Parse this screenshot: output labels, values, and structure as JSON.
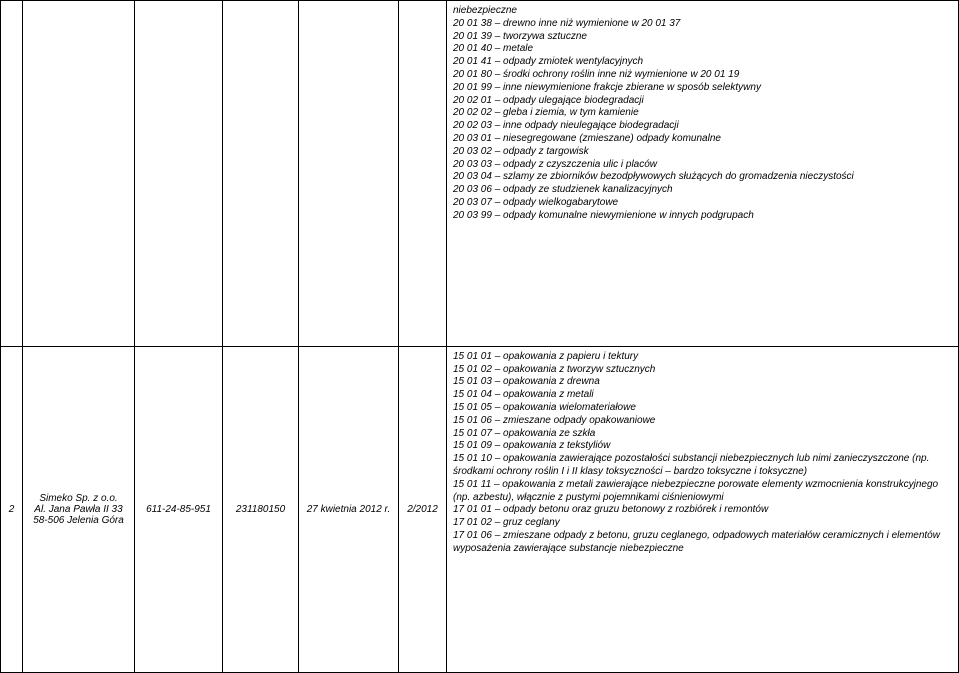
{
  "row1": {
    "lines": [
      "niebezpieczne",
      "20 01 38 – drewno inne niż wymienione w 20 01 37",
      "20 01 39 – tworzywa sztuczne",
      "20 01 40 – metale",
      "20 01 41 – odpady zmiotek wentylacyjnych",
      "20 01 80 – środki ochrony roślin inne niż wymienione w 20 01 19",
      "20 01 99 – inne niewymienione frakcje zbierane w sposób selektywny",
      "20 02 01 – odpady ulegające biodegradacji",
      "20 02 02 – gleba i ziemia, w tym kamienie",
      "20 02 03 – inne odpady nieulegające biodegradacji",
      "20 03 01 – niesegregowane (zmieszane) odpady komunalne",
      "20 03 02 – odpady z targowisk",
      "20 03 03 – odpady z czyszczenia ulic i placów",
      "20 03 04 – szlamy ze zbiorników bezodpływowych służących do gromadzenia nieczystości",
      "20 03 06 – odpady ze studzienek kanalizacyjnych",
      "20 03 07 – odpady wielkogabarytowe",
      "20 03 99 – odpady komunalne niewymienione w innych podgrupach"
    ]
  },
  "row2": {
    "num": "2",
    "company_name": "Simeko Sp. z o.o.",
    "company_addr1": "Al. Jana Pawła II 33",
    "company_addr2": "58-506 Jelenia Góra",
    "nip": "611-24-85-951",
    "regon": "231180150",
    "date": "27 kwietnia 2012 r.",
    "decno": "2/2012",
    "lines": [
      "15 01 01 – opakowania z papieru i tektury",
      "15 01 02 – opakowania z tworzyw sztucznych",
      "15 01 03 – opakowania z drewna",
      "15 01 04 – opakowania z metali",
      "15 01 05 – opakowania wielomateriałowe",
      "15 01 06 – zmieszane odpady opakowaniowe",
      "15 01 07 – opakowania ze szkła",
      "15 01 09 – opakowania z tekstyliów",
      "15 01 10 – opakowania zawierające pozostałości substancji niebezpiecznych lub nimi zanieczyszczone (np. środkami ochrony roślin I i II klasy toksyczności – bardzo toksyczne i toksyczne)",
      "15 01 11 – opakowania z metali zawierające niebezpieczne porowate elementy wzmocnienia konstrukcyjnego (np. azbestu), włącznie z pustymi pojemnikami ciśnieniowymi",
      "17 01 01 – odpady betonu oraz gruzu betonowy z rozbiórek i remontów",
      "17 01 02 – gruz ceglany",
      "17 01 06 – zmieszane odpady z betonu, gruzu ceglanego, odpadowych materiałów ceramicznych i elementów wyposażenia zawierające substancje niebezpieczne"
    ]
  }
}
